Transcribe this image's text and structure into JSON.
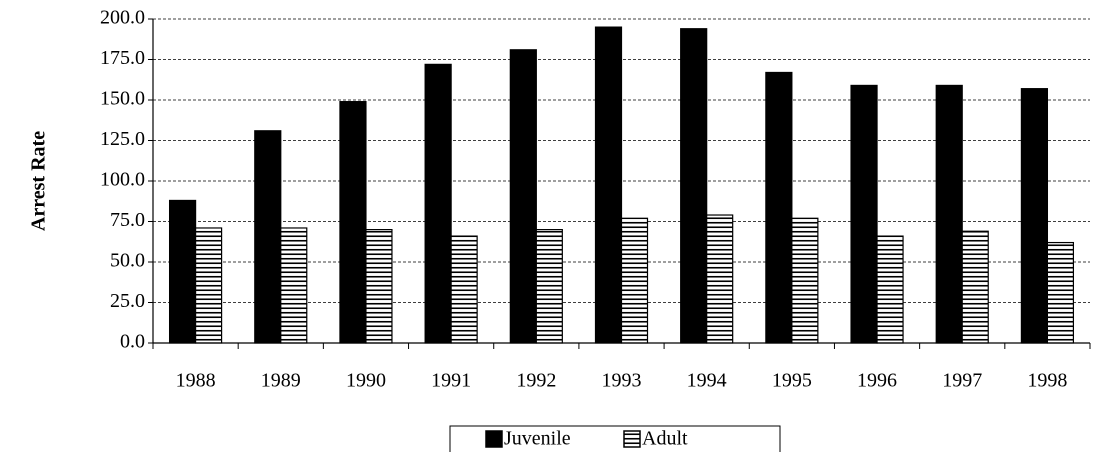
{
  "chart_data": {
    "type": "bar",
    "y_label": "Arrest Rate",
    "categories": [
      "1988",
      "1989",
      "1990",
      "1991",
      "1992",
      "1993",
      "1994",
      "1995",
      "1996",
      "1997",
      "1998"
    ],
    "series": [
      {
        "name": "Juvenile",
        "color": "#000000",
        "pattern": "solid",
        "values": [
          88,
          131,
          149,
          172,
          181,
          195,
          194,
          167,
          159,
          159,
          157
        ]
      },
      {
        "name": "Adult",
        "color": "#000000",
        "pattern": "horizontal-stripes",
        "values": [
          71,
          71,
          70,
          66,
          70,
          77,
          79,
          77,
          66,
          69,
          62
        ]
      }
    ],
    "ylim": [
      0,
      200
    ],
    "yticks": [
      {
        "value": 0,
        "label": "0.0"
      },
      {
        "value": 25,
        "label": "25.0"
      },
      {
        "value": 50,
        "label": "50.0"
      },
      {
        "value": 75,
        "label": "75.0"
      },
      {
        "value": 100,
        "label": "100.0"
      },
      {
        "value": 125,
        "label": "125.0"
      },
      {
        "value": 150,
        "label": "150.0"
      },
      {
        "value": 175,
        "label": "175.0"
      },
      {
        "value": 200,
        "label": "200.0"
      }
    ],
    "grid": true
  }
}
